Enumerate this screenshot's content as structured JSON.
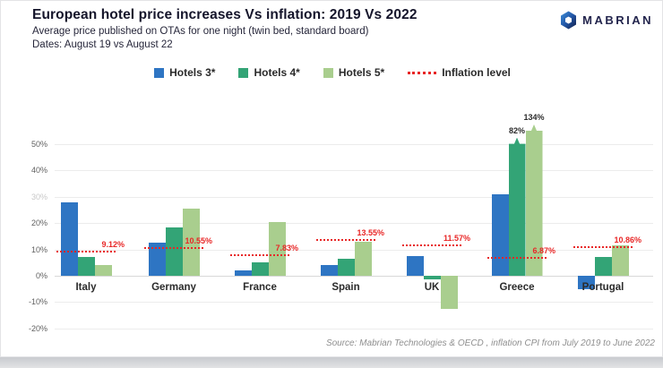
{
  "header": {
    "title": "European hotel price increases Vs inflation: 2019 Vs 2022",
    "subtitle": "Average price published on OTAs for one night (twin bed, standard board)",
    "dates": "Dates: August 19 vs August 22"
  },
  "logo": {
    "text": "MABRIAN"
  },
  "legend": [
    {
      "label": "Hotels 3*",
      "marker": "square",
      "color": "#2e75c3"
    },
    {
      "label": "Hotels 4*",
      "marker": "square",
      "color": "#33a476"
    },
    {
      "label": "Hotels 5*",
      "marker": "square",
      "color": "#a9ce8e"
    },
    {
      "label": "Inflation level",
      "marker": "dotted-line",
      "color": "#e82727"
    }
  ],
  "chart_data": {
    "type": "bar",
    "title": "European hotel price increases Vs inflation: 2019 Vs 2022",
    "categories": [
      "Italy",
      "Germany",
      "France",
      "Spain",
      "UK",
      "Greece",
      "Portugal"
    ],
    "series": [
      {
        "name": "Hotels 3*",
        "color": "#2e75c3",
        "values": [
          28,
          12.5,
          2,
          4,
          7.5,
          31,
          -5
        ]
      },
      {
        "name": "Hotels 4*",
        "color": "#33a476",
        "values": [
          7,
          18.5,
          5,
          6.5,
          -1.5,
          82,
          7
        ]
      },
      {
        "name": "Hotels 5*",
        "color": "#a9ce8e",
        "values": [
          4,
          25.5,
          20.5,
          13,
          -12.5,
          134,
          11.5
        ]
      }
    ],
    "inflation_series": {
      "name": "Inflation level",
      "color": "#e82727",
      "values": [
        9.12,
        10.55,
        7.83,
        13.55,
        11.57,
        6.87,
        10.86
      ],
      "labels": [
        "9.12%",
        "10.55%",
        "7.83%",
        "13.55%",
        "11.57%",
        "6.87%",
        "10.86%"
      ]
    },
    "clipped_bars": [
      {
        "category_index": 5,
        "series_index": 1,
        "display_value": 52.5,
        "label": "82%"
      },
      {
        "category_index": 5,
        "series_index": 2,
        "display_value": 57.5,
        "label": "134%"
      }
    ],
    "yticks": [
      "50%",
      "40%",
      "30%",
      "20%",
      "10%",
      "0%",
      "-10%",
      "-20%"
    ],
    "ytick_values": [
      50,
      40,
      30,
      20,
      10,
      0,
      -10,
      -20
    ],
    "faded_yticks": [
      "30%"
    ],
    "ylim": [
      -22,
      62
    ],
    "grid": true,
    "legend_position": "top",
    "xlabel": "",
    "ylabel": ""
  },
  "source": "Source: Mabrian Technologies & OECD , inflation CPI from July 2019 to June 2022"
}
